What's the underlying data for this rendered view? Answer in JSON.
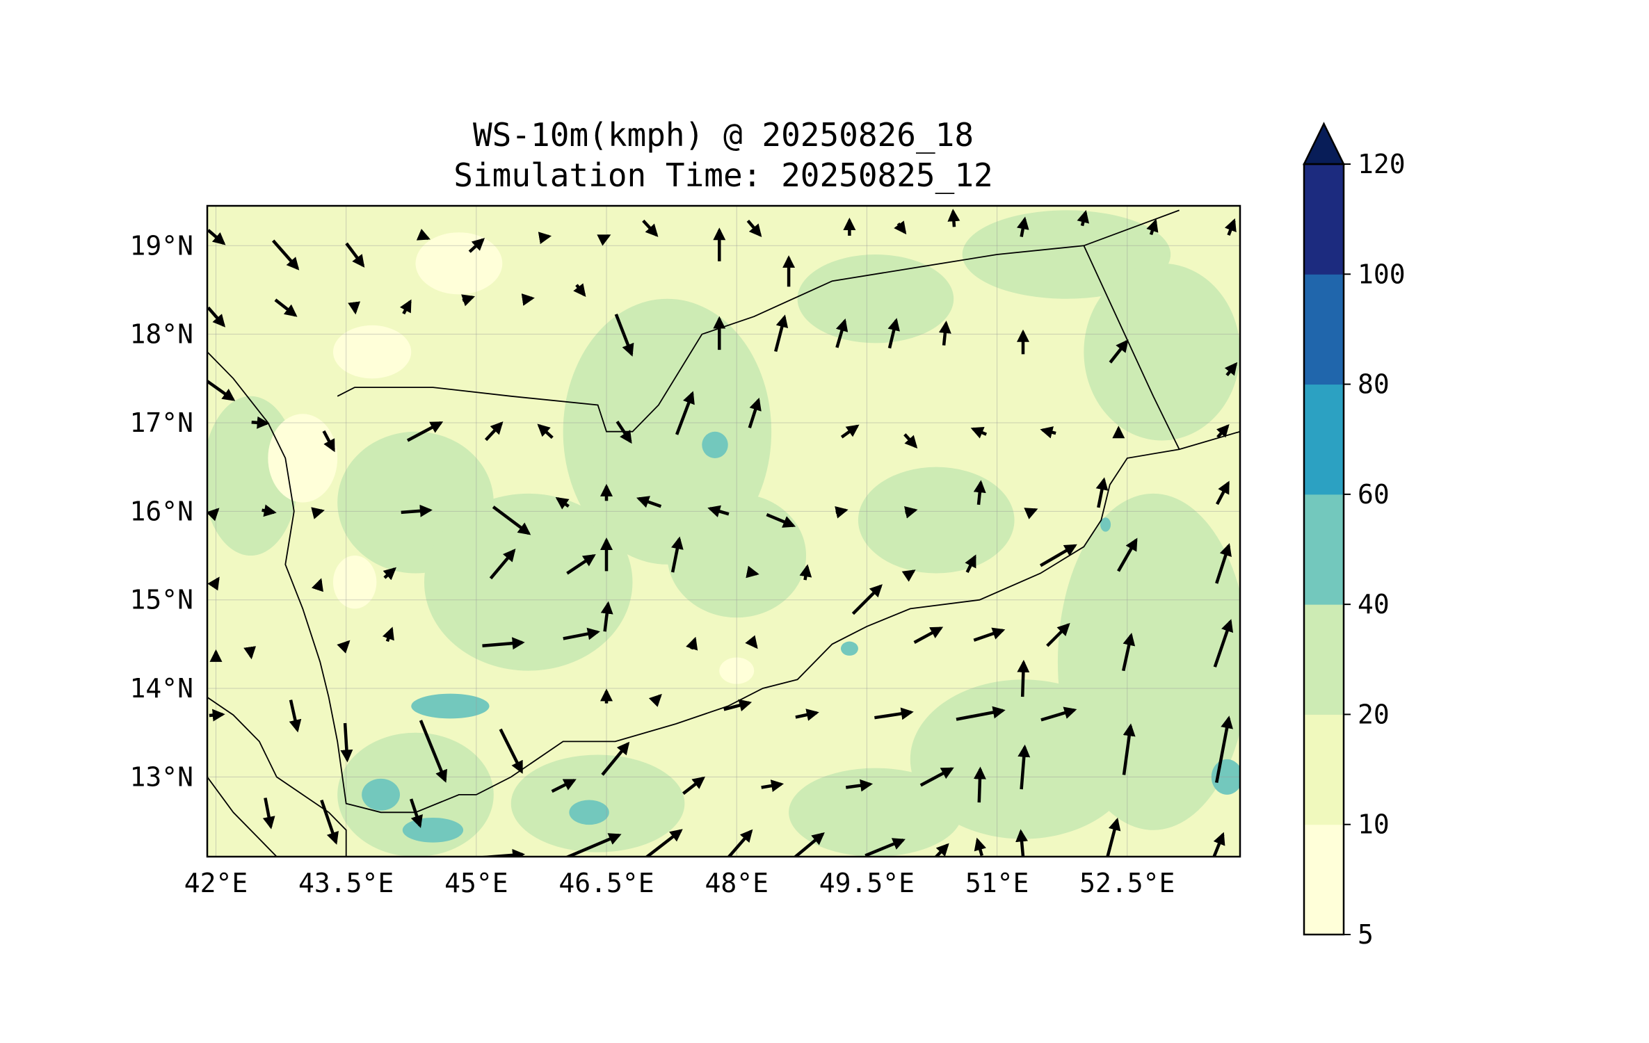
{
  "title": {
    "line1": "WS-10m(kmph) @ 20250826_18",
    "line2": "Simulation Time: 20250825_12"
  },
  "map": {
    "lon_range": [
      41.9,
      53.8
    ],
    "lat_range": [
      12.1,
      19.45
    ],
    "lon_ticks": [
      {
        "value": 42.0,
        "label": "42°E"
      },
      {
        "value": 43.5,
        "label": "43.5°E"
      },
      {
        "value": 45.0,
        "label": "45°E"
      },
      {
        "value": 46.5,
        "label": "46.5°E"
      },
      {
        "value": 48.0,
        "label": "48°E"
      },
      {
        "value": 49.5,
        "label": "49.5°E"
      },
      {
        "value": 51.0,
        "label": "51°E"
      },
      {
        "value": 52.5,
        "label": "52.5°E"
      }
    ],
    "lat_ticks": [
      {
        "value": 19,
        "label": "19°N"
      },
      {
        "value": 18,
        "label": "18°N"
      },
      {
        "value": 17,
        "label": "17°N"
      },
      {
        "value": 16,
        "label": "16°N"
      },
      {
        "value": 15,
        "label": "15°N"
      },
      {
        "value": 14,
        "label": "14°N"
      },
      {
        "value": 13,
        "label": "13°N"
      }
    ],
    "gridlines": true,
    "base_fill": "#f1f9c2"
  },
  "colorbar": {
    "orientation": "vertical",
    "placement": "right",
    "extend": "max",
    "levels": [
      {
        "from": 5,
        "to": 10,
        "color": "#ffffd9"
      },
      {
        "from": 10,
        "to": 20,
        "color": "#f0f9bd"
      },
      {
        "from": 20,
        "to": 40,
        "color": "#cdebb4"
      },
      {
        "from": 40,
        "to": 60,
        "color": "#73c8bd"
      },
      {
        "from": 60,
        "to": 80,
        "color": "#2ca1c2"
      },
      {
        "from": 80,
        "to": 100,
        "color": "#2066ac"
      },
      {
        "from": 100,
        "to": 120,
        "color": "#1c2b7f"
      }
    ],
    "extend_color": "#081d58",
    "tick_labels": [
      "5",
      "10",
      "20",
      "40",
      "60",
      "80",
      "100",
      "120"
    ]
  },
  "wind_regions": [
    {
      "lon": 42.4,
      "lat": 16.4,
      "rx": 0.55,
      "ry": 0.9,
      "band": "20-40"
    },
    {
      "lon": 44.3,
      "lat": 16.1,
      "rx": 0.9,
      "ry": 0.8,
      "band": "20-40"
    },
    {
      "lon": 45.6,
      "lat": 15.2,
      "rx": 1.2,
      "ry": 1.0,
      "band": "20-40"
    },
    {
      "lon": 47.2,
      "lat": 16.9,
      "rx": 1.2,
      "ry": 1.5,
      "band": "20-40"
    },
    {
      "lon": 48.0,
      "lat": 15.5,
      "rx": 0.8,
      "ry": 0.7,
      "band": "20-40"
    },
    {
      "lon": 49.6,
      "lat": 18.4,
      "rx": 0.9,
      "ry": 0.5,
      "band": "20-40"
    },
    {
      "lon": 51.8,
      "lat": 18.9,
      "rx": 1.2,
      "ry": 0.5,
      "band": "20-40"
    },
    {
      "lon": 52.9,
      "lat": 17.8,
      "rx": 0.9,
      "ry": 1.0,
      "band": "20-40"
    },
    {
      "lon": 52.8,
      "lat": 14.3,
      "rx": 1.1,
      "ry": 1.9,
      "band": "20-40"
    },
    {
      "lon": 51.3,
      "lat": 13.2,
      "rx": 1.3,
      "ry": 0.9,
      "band": "20-40"
    },
    {
      "lon": 49.6,
      "lat": 12.6,
      "rx": 1.0,
      "ry": 0.5,
      "band": "20-40"
    },
    {
      "lon": 46.4,
      "lat": 12.7,
      "rx": 1.0,
      "ry": 0.55,
      "band": "20-40"
    },
    {
      "lon": 44.3,
      "lat": 12.8,
      "rx": 0.9,
      "ry": 0.7,
      "band": "20-40"
    },
    {
      "lon": 50.3,
      "lat": 15.9,
      "rx": 0.9,
      "ry": 0.6,
      "band": "20-40"
    },
    {
      "lon": 44.7,
      "lat": 13.8,
      "rx": 0.45,
      "ry": 0.14,
      "band": "40-60"
    },
    {
      "lon": 43.9,
      "lat": 12.8,
      "rx": 0.22,
      "ry": 0.18,
      "band": "40-60"
    },
    {
      "lon": 44.5,
      "lat": 12.4,
      "rx": 0.35,
      "ry": 0.14,
      "band": "40-60"
    },
    {
      "lon": 46.3,
      "lat": 12.6,
      "rx": 0.23,
      "ry": 0.14,
      "band": "40-60"
    },
    {
      "lon": 47.75,
      "lat": 16.75,
      "rx": 0.15,
      "ry": 0.15,
      "band": "40-60"
    },
    {
      "lon": 49.3,
      "lat": 14.45,
      "rx": 0.1,
      "ry": 0.08,
      "band": "40-60"
    },
    {
      "lon": 53.65,
      "lat": 13.0,
      "rx": 0.18,
      "ry": 0.2,
      "band": "40-60"
    },
    {
      "lon": 52.25,
      "lat": 15.85,
      "rx": 0.06,
      "ry": 0.08,
      "band": "40-60"
    },
    {
      "lon": 43.0,
      "lat": 16.6,
      "rx": 0.4,
      "ry": 0.5,
      "band": "5-10"
    },
    {
      "lon": 43.6,
      "lat": 15.2,
      "rx": 0.25,
      "ry": 0.3,
      "band": "5-10"
    },
    {
      "lon": 44.8,
      "lat": 18.8,
      "rx": 0.5,
      "ry": 0.35,
      "band": "5-10"
    },
    {
      "lon": 43.8,
      "lat": 17.8,
      "rx": 0.45,
      "ry": 0.3,
      "band": "5-10"
    },
    {
      "lon": 48.0,
      "lat": 14.2,
      "rx": 0.2,
      "ry": 0.15,
      "band": "5-10"
    }
  ],
  "wind_vectors": [
    {
      "lon": 42.0,
      "lat": 19.1,
      "u": 14,
      "v": -12
    },
    {
      "lon": 42.8,
      "lat": 18.9,
      "u": 22,
      "v": -25
    },
    {
      "lon": 43.6,
      "lat": 18.9,
      "u": 15,
      "v": -20
    },
    {
      "lon": 44.4,
      "lat": 19.1,
      "u": 7,
      "v": -3
    },
    {
      "lon": 45.0,
      "lat": 19.0,
      "u": 12,
      "v": 11
    },
    {
      "lon": 45.8,
      "lat": 19.1,
      "u": 6,
      "v": 1
    },
    {
      "lon": 46.5,
      "lat": 19.1,
      "u": 4,
      "v": 2
    },
    {
      "lon": 47.0,
      "lat": 19.2,
      "u": 12,
      "v": -13
    },
    {
      "lon": 47.8,
      "lat": 19.0,
      "u": 0,
      "v": 28
    },
    {
      "lon": 48.2,
      "lat": 19.2,
      "u": 11,
      "v": -13
    },
    {
      "lon": 48.6,
      "lat": 18.7,
      "u": 0,
      "v": 26
    },
    {
      "lon": 49.3,
      "lat": 19.2,
      "u": 0,
      "v": 14
    },
    {
      "lon": 49.9,
      "lat": 19.2,
      "u": 6,
      "v": -8
    },
    {
      "lon": 50.5,
      "lat": 19.3,
      "u": -1,
      "v": 14
    },
    {
      "lon": 51.3,
      "lat": 19.2,
      "u": 3,
      "v": 16
    },
    {
      "lon": 52.0,
      "lat": 19.3,
      "u": 3,
      "v": 12
    },
    {
      "lon": 52.8,
      "lat": 19.2,
      "u": 4,
      "v": 12
    },
    {
      "lon": 53.7,
      "lat": 19.2,
      "u": 5,
      "v": 13
    },
    {
      "lon": 42.0,
      "lat": 18.2,
      "u": 14,
      "v": -16
    },
    {
      "lon": 42.8,
      "lat": 18.3,
      "u": 18,
      "v": -14
    },
    {
      "lon": 43.6,
      "lat": 18.3,
      "u": 1,
      "v": -8
    },
    {
      "lon": 44.2,
      "lat": 18.3,
      "u": 6,
      "v": 11
    },
    {
      "lon": 44.9,
      "lat": 18.4,
      "u": 9,
      "v": 3
    },
    {
      "lon": 45.6,
      "lat": 18.4,
      "u": 7,
      "v": 1
    },
    {
      "lon": 46.2,
      "lat": 18.5,
      "u": 7,
      "v": -9
    },
    {
      "lon": 46.7,
      "lat": 18.0,
      "u": 14,
      "v": -36
    },
    {
      "lon": 47.8,
      "lat": 18.0,
      "u": 0,
      "v": 28
    },
    {
      "lon": 48.5,
      "lat": 18.0,
      "u": 8,
      "v": 31
    },
    {
      "lon": 49.2,
      "lat": 18.0,
      "u": 7,
      "v": 24
    },
    {
      "lon": 49.8,
      "lat": 18.0,
      "u": 6,
      "v": 25
    },
    {
      "lon": 50.4,
      "lat": 18.0,
      "u": 2,
      "v": 20
    },
    {
      "lon": 51.3,
      "lat": 17.9,
      "u": 0,
      "v": 20
    },
    {
      "lon": 52.4,
      "lat": 17.8,
      "u": 15,
      "v": 19
    },
    {
      "lon": 53.7,
      "lat": 17.6,
      "u": 8,
      "v": 10
    },
    {
      "lon": 42.0,
      "lat": 17.4,
      "u": 31,
      "v": -22
    },
    {
      "lon": 42.5,
      "lat": 17.0,
      "u": 14,
      "v": -1
    },
    {
      "lon": 43.3,
      "lat": 16.8,
      "u": 9,
      "v": -17
    },
    {
      "lon": 44.4,
      "lat": 16.9,
      "u": 30,
      "v": 16
    },
    {
      "lon": 45.2,
      "lat": 16.9,
      "u": 14,
      "v": 15
    },
    {
      "lon": 45.8,
      "lat": 16.9,
      "u": -12,
      "v": 11
    },
    {
      "lon": 46.7,
      "lat": 16.9,
      "u": 12,
      "v": -18
    },
    {
      "lon": 47.4,
      "lat": 17.1,
      "u": 14,
      "v": 37
    },
    {
      "lon": 48.2,
      "lat": 17.1,
      "u": 8,
      "v": 25
    },
    {
      "lon": 49.3,
      "lat": 16.9,
      "u": 14,
      "v": 10
    },
    {
      "lon": 50.0,
      "lat": 16.8,
      "u": 10,
      "v": -11
    },
    {
      "lon": 50.8,
      "lat": 16.9,
      "u": -12,
      "v": 5
    },
    {
      "lon": 51.6,
      "lat": 16.9,
      "u": -12,
      "v": 3
    },
    {
      "lon": 52.4,
      "lat": 16.9,
      "u": 0,
      "v": 6
    },
    {
      "lon": 53.6,
      "lat": 16.9,
      "u": 9,
      "v": 10
    },
    {
      "lon": 42.0,
      "lat": 16.0,
      "u": 3,
      "v": 3
    },
    {
      "lon": 42.6,
      "lat": 16.0,
      "u": 11,
      "v": -2
    },
    {
      "lon": 43.2,
      "lat": 16.0,
      "u": 4,
      "v": 1
    },
    {
      "lon": 44.3,
      "lat": 16.0,
      "u": 26,
      "v": 2
    },
    {
      "lon": 45.4,
      "lat": 15.9,
      "u": 32,
      "v": -24
    },
    {
      "lon": 46.0,
      "lat": 16.1,
      "u": -10,
      "v": 7
    },
    {
      "lon": 46.5,
      "lat": 16.2,
      "u": 0,
      "v": 13
    },
    {
      "lon": 47.0,
      "lat": 16.1,
      "u": -20,
      "v": 7
    },
    {
      "lon": 47.8,
      "lat": 16.0,
      "u": -17,
      "v": 5
    },
    {
      "lon": 48.5,
      "lat": 15.9,
      "u": 24,
      "v": -10
    },
    {
      "lon": 49.2,
      "lat": 16.0,
      "u": 9,
      "v": 2
    },
    {
      "lon": 50.0,
      "lat": 16.0,
      "u": 9,
      "v": 2
    },
    {
      "lon": 50.8,
      "lat": 16.2,
      "u": 2,
      "v": 20
    },
    {
      "lon": 51.4,
      "lat": 16.0,
      "u": 7,
      "v": 3
    },
    {
      "lon": 52.2,
      "lat": 16.2,
      "u": 5,
      "v": 25
    },
    {
      "lon": 53.6,
      "lat": 16.2,
      "u": 10,
      "v": 19
    },
    {
      "lon": 42.0,
      "lat": 15.2,
      "u": 4,
      "v": 6
    },
    {
      "lon": 43.2,
      "lat": 15.2,
      "u": 1,
      "v": 3
    },
    {
      "lon": 44.0,
      "lat": 15.3,
      "u": 9,
      "v": 8
    },
    {
      "lon": 45.3,
      "lat": 15.4,
      "u": 21,
      "v": 25
    },
    {
      "lon": 46.2,
      "lat": 15.4,
      "u": 24,
      "v": 16
    },
    {
      "lon": 46.5,
      "lat": 15.5,
      "u": 0,
      "v": 28
    },
    {
      "lon": 47.3,
      "lat": 15.5,
      "u": 6,
      "v": 30
    },
    {
      "lon": 48.2,
      "lat": 15.3,
      "u": 5,
      "v": -1
    },
    {
      "lon": 48.8,
      "lat": 15.3,
      "u": 2,
      "v": 12
    },
    {
      "lon": 49.5,
      "lat": 15.0,
      "u": 25,
      "v": 25
    },
    {
      "lon": 50.0,
      "lat": 15.3,
      "u": 6,
      "v": 4
    },
    {
      "lon": 50.7,
      "lat": 15.4,
      "u": 7,
      "v": 14
    },
    {
      "lon": 51.7,
      "lat": 15.5,
      "u": 31,
      "v": 18
    },
    {
      "lon": 52.5,
      "lat": 15.5,
      "u": 16,
      "v": 28
    },
    {
      "lon": 53.6,
      "lat": 15.4,
      "u": 11,
      "v": 34
    },
    {
      "lon": 42.0,
      "lat": 14.4,
      "u": 0,
      "v": 2
    },
    {
      "lon": 42.4,
      "lat": 14.4,
      "u": 1,
      "v": -7
    },
    {
      "lon": 43.5,
      "lat": 14.5,
      "u": 4,
      "v": 4
    },
    {
      "lon": 44.0,
      "lat": 14.6,
      "u": 4,
      "v": 11
    },
    {
      "lon": 45.3,
      "lat": 14.5,
      "u": 36,
      "v": 3
    },
    {
      "lon": 46.2,
      "lat": 14.6,
      "u": 31,
      "v": 6
    },
    {
      "lon": 46.5,
      "lat": 14.8,
      "u": 3,
      "v": 25
    },
    {
      "lon": 47.5,
      "lat": 14.5,
      "u": 3,
      "v": 9
    },
    {
      "lon": 48.2,
      "lat": 14.5,
      "u": 4,
      "v": -5
    },
    {
      "lon": 50.2,
      "lat": 14.6,
      "u": 24,
      "v": 13
    },
    {
      "lon": 50.9,
      "lat": 14.6,
      "u": 26,
      "v": 9
    },
    {
      "lon": 51.7,
      "lat": 14.6,
      "u": 19,
      "v": 19
    },
    {
      "lon": 51.3,
      "lat": 14.1,
      "u": 1,
      "v": 31
    },
    {
      "lon": 52.5,
      "lat": 14.4,
      "u": 7,
      "v": 32
    },
    {
      "lon": 53.6,
      "lat": 14.5,
      "u": 14,
      "v": 41
    },
    {
      "lon": 42.0,
      "lat": 13.7,
      "u": 12,
      "v": 1
    },
    {
      "lon": 42.9,
      "lat": 13.7,
      "u": 6,
      "v": -27
    },
    {
      "lon": 43.5,
      "lat": 13.4,
      "u": 2,
      "v": -33
    },
    {
      "lon": 44.5,
      "lat": 13.3,
      "u": 22,
      "v": -54
    },
    {
      "lon": 45.4,
      "lat": 13.3,
      "u": 19,
      "v": -38
    },
    {
      "lon": 46.5,
      "lat": 13.9,
      "u": 0,
      "v": 11
    },
    {
      "lon": 47.1,
      "lat": 13.9,
      "u": 3,
      "v": 3
    },
    {
      "lon": 48.0,
      "lat": 13.8,
      "u": 23,
      "v": 6
    },
    {
      "lon": 48.8,
      "lat": 13.7,
      "u": 19,
      "v": 4
    },
    {
      "lon": 49.8,
      "lat": 13.7,
      "u": 33,
      "v": 5
    },
    {
      "lon": 50.8,
      "lat": 13.7,
      "u": 42,
      "v": 8
    },
    {
      "lon": 51.7,
      "lat": 13.7,
      "u": 30,
      "v": 9
    },
    {
      "lon": 51.3,
      "lat": 13.1,
      "u": 3,
      "v": 38
    },
    {
      "lon": 52.5,
      "lat": 13.3,
      "u": 6,
      "v": 44
    },
    {
      "lon": 53.6,
      "lat": 13.3,
      "u": 11,
      "v": 58
    },
    {
      "lon": 42.6,
      "lat": 12.6,
      "u": 5,
      "v": -26
    },
    {
      "lon": 43.3,
      "lat": 12.5,
      "u": 13,
      "v": -38
    },
    {
      "lon": 44.3,
      "lat": 12.6,
      "u": 8,
      "v": -24
    },
    {
      "lon": 46.0,
      "lat": 12.9,
      "u": 20,
      "v": 10
    },
    {
      "lon": 46.6,
      "lat": 13.2,
      "u": 23,
      "v": 28
    },
    {
      "lon": 47.5,
      "lat": 12.9,
      "u": 18,
      "v": 14
    },
    {
      "lon": 48.4,
      "lat": 12.9,
      "u": 18,
      "v": 3
    },
    {
      "lon": 49.4,
      "lat": 12.9,
      "u": 22,
      "v": 3
    },
    {
      "lon": 50.3,
      "lat": 13.0,
      "u": 28,
      "v": 15
    },
    {
      "lon": 50.8,
      "lat": 12.9,
      "u": 1,
      "v": 30
    },
    {
      "lon": 45.2,
      "lat": 12.1,
      "u": 52,
      "v": 4
    },
    {
      "lon": 46.3,
      "lat": 12.2,
      "u": 54,
      "v": 23
    },
    {
      "lon": 47.1,
      "lat": 12.2,
      "u": 40,
      "v": 31
    },
    {
      "lon": 48.0,
      "lat": 12.2,
      "u": 26,
      "v": 30
    },
    {
      "lon": 48.8,
      "lat": 12.2,
      "u": 30,
      "v": 25
    },
    {
      "lon": 49.7,
      "lat": 12.2,
      "u": 34,
      "v": 14
    },
    {
      "lon": 50.3,
      "lat": 12.1,
      "u": 20,
      "v": 21
    },
    {
      "lon": 50.8,
      "lat": 12.2,
      "u": -4,
      "v": 14
    },
    {
      "lon": 51.3,
      "lat": 12.1,
      "u": -4,
      "v": 45
    },
    {
      "lon": 52.3,
      "lat": 12.2,
      "u": 13,
      "v": 50
    },
    {
      "lon": 53.5,
      "lat": 12.1,
      "u": 16,
      "v": 40
    }
  ],
  "borders": {
    "coast": [
      [
        41.9,
        17.8
      ],
      [
        42.2,
        17.5
      ],
      [
        42.6,
        17.0
      ],
      [
        42.8,
        16.6
      ],
      [
        42.9,
        16.0
      ],
      [
        42.8,
        15.4
      ],
      [
        43.0,
        14.9
      ],
      [
        43.2,
        14.3
      ],
      [
        43.3,
        13.9
      ],
      [
        43.4,
        13.4
      ],
      [
        43.5,
        12.7
      ],
      [
        43.9,
        12.6
      ],
      [
        44.3,
        12.6
      ],
      [
        44.8,
        12.8
      ],
      [
        45.0,
        12.8
      ],
      [
        45.4,
        13.0
      ],
      [
        46.0,
        13.4
      ],
      [
        46.6,
        13.4
      ],
      [
        47.3,
        13.6
      ],
      [
        47.9,
        13.8
      ],
      [
        48.3,
        14.0
      ],
      [
        48.7,
        14.1
      ],
      [
        49.1,
        14.5
      ],
      [
        49.5,
        14.7
      ],
      [
        50.0,
        14.9
      ],
      [
        50.8,
        15.0
      ],
      [
        51.5,
        15.3
      ],
      [
        52.0,
        15.6
      ],
      [
        52.2,
        15.9
      ],
      [
        52.3,
        16.3
      ],
      [
        52.5,
        16.6
      ],
      [
        53.1,
        16.7
      ],
      [
        53.8,
        16.9
      ]
    ],
    "saudi": [
      [
        43.4,
        17.3
      ],
      [
        43.6,
        17.4
      ],
      [
        44.5,
        17.4
      ],
      [
        45.4,
        17.3
      ],
      [
        46.4,
        17.2
      ],
      [
        46.5,
        16.9
      ],
      [
        46.8,
        16.9
      ],
      [
        47.1,
        17.2
      ],
      [
        47.6,
        18.0
      ],
      [
        48.2,
        18.2
      ],
      [
        49.1,
        18.6
      ],
      [
        51.0,
        18.9
      ],
      [
        52.0,
        19.0
      ],
      [
        53.1,
        19.4
      ]
    ],
    "oman": [
      [
        52.0,
        19.0
      ],
      [
        52.8,
        17.3
      ],
      [
        53.1,
        16.7
      ]
    ],
    "west_coast": [
      [
        41.9,
        13.9
      ],
      [
        42.2,
        13.7
      ],
      [
        42.5,
        13.4
      ],
      [
        42.7,
        13.0
      ],
      [
        43.0,
        12.8
      ],
      [
        43.3,
        12.6
      ],
      [
        43.5,
        12.4
      ],
      [
        43.5,
        12.1
      ]
    ],
    "lower_coast": [
      [
        41.9,
        13.0
      ],
      [
        42.2,
        12.6
      ],
      [
        42.5,
        12.3
      ],
      [
        42.7,
        12.1
      ]
    ]
  }
}
